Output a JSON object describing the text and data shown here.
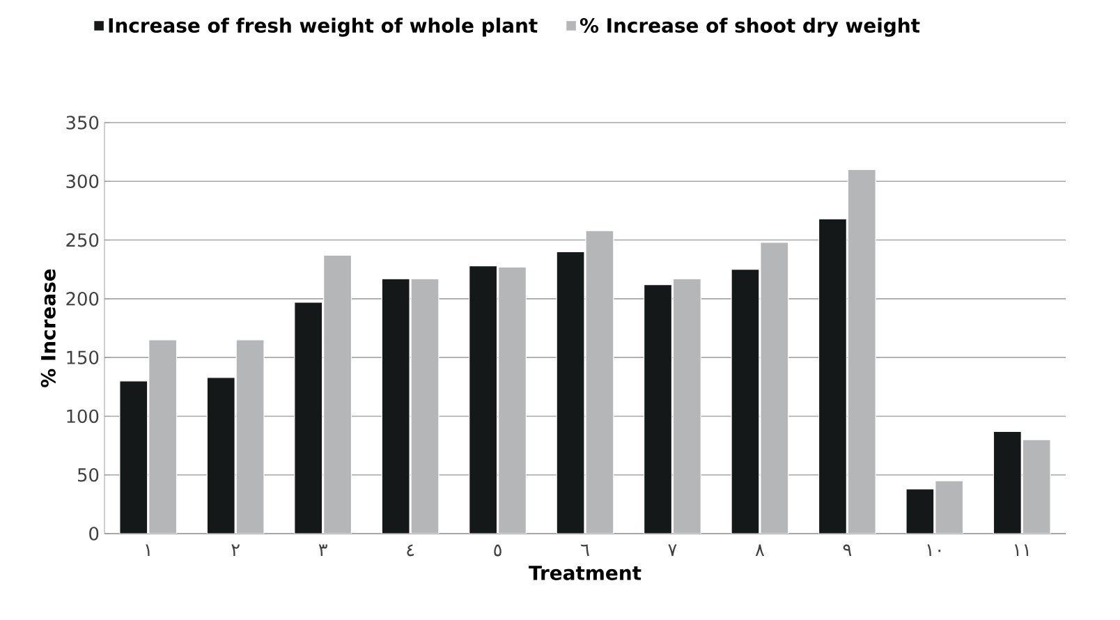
{
  "chart_data": {
    "type": "bar",
    "xlabel": "Treatment",
    "ylabel": "% Increase",
    "categories": [
      "١",
      "٢",
      "٣",
      "٤",
      "٥",
      "٦",
      "٧",
      "٨",
      "٩",
      "١٠",
      "١١"
    ],
    "series": [
      {
        "name": "Increase of fresh weight of whole plant",
        "color": "#141819",
        "values": [
          130,
          133,
          197,
          217,
          228,
          240,
          212,
          225,
          268,
          38,
          87
        ]
      },
      {
        "name": "% Increase of shoot dry weight",
        "color": "#b4b6b8",
        "values": [
          165,
          165,
          237,
          217,
          227,
          258,
          217,
          248,
          310,
          45,
          80
        ]
      }
    ],
    "ylim": [
      0,
      350
    ],
    "yticks": [
      0,
      50,
      100,
      150,
      200,
      250,
      300,
      350
    ],
    "grid": "y",
    "legend": "top"
  }
}
